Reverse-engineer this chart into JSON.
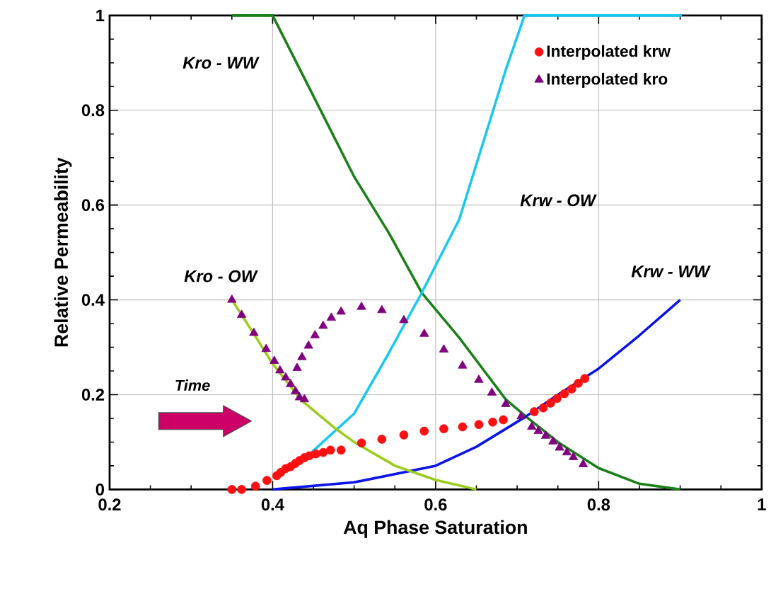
{
  "chart_data": {
    "type": "line",
    "xlabel": "Aq Phase Saturation",
    "ylabel": "Relative Permeability",
    "xlim": [
      0.2,
      1
    ],
    "xticks": [
      0.2,
      0.4,
      0.6,
      0.8,
      1
    ],
    "ylim": [
      0,
      1
    ],
    "yticks": [
      0,
      0.2,
      0.4,
      0.6,
      0.8,
      1
    ],
    "grid": true,
    "legend": "top right",
    "series": [
      {
        "color": "#1a801a",
        "x": [
          0.35,
          0.4,
          0.45,
          0.5,
          0.543,
          0.583,
          0.629,
          0.686,
          0.71,
          0.75,
          0.8,
          0.85,
          0.9
        ],
        "values": [
          1,
          1,
          0.83,
          0.66,
          0.54,
          0.415,
          0.32,
          0.19,
          0.155,
          0.1,
          0.045,
          0.012,
          0
        ]
      },
      {
        "color": "#19c8f0",
        "x": [
          0.445,
          0.5,
          0.54,
          0.583,
          0.629,
          0.686,
          0.709,
          0.902
        ],
        "values": [
          0.074,
          0.16,
          0.28,
          0.415,
          0.57,
          0.885,
          1,
          1
        ]
      },
      {
        "color": "#0a14e6",
        "x": [
          0.4,
          0.5,
          0.6,
          0.65,
          0.709,
          0.75,
          0.8,
          0.85,
          0.9
        ],
        "values": [
          0,
          0.015,
          0.05,
          0.09,
          0.152,
          0.2,
          0.255,
          0.325,
          0.4
        ]
      },
      {
        "color": "#9ccc1a",
        "x": [
          0.35,
          0.38,
          0.4,
          0.436,
          0.476,
          0.5,
          0.55,
          0.6,
          0.65
        ],
        "values": [
          0.4,
          0.32,
          0.265,
          0.187,
          0.13,
          0.1,
          0.05,
          0.02,
          0
        ]
      },
      {
        "type": "scatter",
        "name": "Interpolated krw",
        "color": "#ff1010",
        "marker": "circle",
        "x": [
          0.35,
          0.362,
          0.379,
          0.393,
          0.405,
          0.41,
          0.416,
          0.422,
          0.428,
          0.433,
          0.439,
          0.445,
          0.453,
          0.462,
          0.471,
          0.484,
          0.509,
          0.534,
          0.561,
          0.586,
          0.61,
          0.633,
          0.653,
          0.67,
          0.683,
          0.706,
          0.721,
          0.732,
          0.741,
          0.749,
          0.758,
          0.767,
          0.775,
          0.783
        ],
        "values": [
          0,
          0,
          0.007,
          0.019,
          0.029,
          0.036,
          0.044,
          0.048,
          0.055,
          0.061,
          0.067,
          0.071,
          0.075,
          0.078,
          0.083,
          0.083,
          0.098,
          0.106,
          0.115,
          0.123,
          0.128,
          0.132,
          0.137,
          0.142,
          0.147,
          null,
          0.164,
          0.172,
          0.182,
          0.192,
          0.202,
          0.212,
          0.224,
          0.234
        ]
      },
      {
        "type": "scatter",
        "name": "Interpolated kro",
        "color": "#800080",
        "marker": "triangle",
        "x": [
          0.35,
          0.362,
          0.377,
          0.392,
          0.402,
          0.409,
          0.416,
          0.422,
          0.428,
          0.433,
          0.439,
          0.43,
          0.436,
          0.444,
          0.452,
          0.462,
          0.472,
          0.484,
          0.509,
          0.534,
          0.561,
          0.586,
          0.61,
          0.633,
          0.653,
          0.669,
          0.686,
          0.705,
          0.718,
          0.726,
          0.735,
          0.744,
          0.752,
          0.761,
          0.769,
          0.781
        ],
        "values": [
          0.4,
          0.368,
          0.33,
          0.296,
          0.271,
          0.251,
          0.236,
          0.222,
          0.207,
          0.194,
          0.19,
          0.256,
          0.279,
          0.303,
          0.325,
          0.345,
          0.362,
          0.375,
          0.385,
          0.378,
          0.357,
          0.328,
          0.295,
          0.261,
          0.231,
          0.204,
          0.18,
          0.154,
          0.132,
          0.123,
          0.113,
          0.101,
          0.088,
          0.078,
          0.068,
          0.053
        ]
      }
    ],
    "annotations": [
      "Kro - WW",
      "Kro - OW",
      "Krw - OW",
      "Krw - WW",
      "Time"
    ]
  }
}
